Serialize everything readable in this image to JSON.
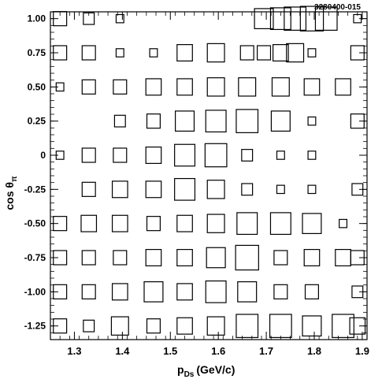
{
  "chart_data": {
    "type": "box-histogram-2d",
    "tag": "3280400-015",
    "xlabel": {
      "main": "p",
      "sub": "Ds",
      "unit": "(GeV/c)"
    },
    "ylabel": {
      "main": "cos θ",
      "sub": "π"
    },
    "xlim": [
      1.25,
      1.91
    ],
    "ylim": [
      -1.35,
      1.05
    ],
    "x_ticks": [
      {
        "v": 1.3,
        "label": "1.3"
      },
      {
        "v": 1.4,
        "label": "1.4"
      },
      {
        "v": 1.5,
        "label": "1.5"
      },
      {
        "v": 1.6,
        "label": "1.6"
      },
      {
        "v": 1.7,
        "label": "1.7"
      },
      {
        "v": 1.8,
        "label": "1.8"
      },
      {
        "v": 1.9,
        "label": "1.9"
      }
    ],
    "y_ticks": [
      {
        "v": 1.0,
        "label": "1.00"
      },
      {
        "v": 0.75,
        "label": "0.75"
      },
      {
        "v": 0.5,
        "label": "0.50"
      },
      {
        "v": 0.25,
        "label": "0.25"
      },
      {
        "v": 0.0,
        "label": "0"
      },
      {
        "v": -0.25,
        "label": "-0.25"
      },
      {
        "v": -0.5,
        "label": "-0.50"
      },
      {
        "v": -0.75,
        "label": "-0.75"
      },
      {
        "v": -1.0,
        "label": "-1.00"
      },
      {
        "v": -1.25,
        "label": "-1.25"
      }
    ],
    "bins_x": [
      1.27,
      1.3,
      1.33,
      1.365,
      1.395,
      1.43,
      1.465,
      1.495,
      1.53,
      1.56,
      1.595,
      1.625,
      1.66,
      1.695,
      1.73,
      1.76,
      1.795,
      1.825,
      1.86,
      1.89
    ],
    "bins_y": [
      1.0,
      0.75,
      0.5,
      0.25,
      0.0,
      -0.25,
      -0.5,
      -0.75,
      -1.0,
      -1.25
    ],
    "rows": [
      [
        3,
        0,
        2,
        0,
        1,
        0,
        0,
        0,
        0,
        0,
        0,
        0,
        0,
        6,
        7,
        8,
        9,
        8,
        0,
        1
      ],
      [
        3,
        0,
        3,
        0,
        1,
        0,
        1,
        0,
        4,
        0,
        5,
        0,
        3,
        3,
        4,
        5,
        1,
        0,
        0,
        3
      ],
      [
        1,
        0,
        3,
        0,
        3,
        0,
        4,
        0,
        4,
        0,
        5,
        0,
        5,
        0,
        5,
        0,
        4,
        0,
        4,
        0
      ],
      [
        0,
        0,
        0,
        0,
        2,
        0,
        3,
        0,
        6,
        0,
        7,
        0,
        8,
        0,
        6,
        0,
        1,
        0,
        0,
        3
      ],
      [
        1,
        0,
        3,
        0,
        3,
        0,
        4,
        0,
        7,
        0,
        8,
        0,
        2,
        0,
        1,
        0,
        1,
        0,
        0,
        0
      ],
      [
        0,
        0,
        3,
        0,
        4,
        0,
        4,
        0,
        7,
        0,
        5,
        0,
        2,
        0,
        1,
        0,
        1,
        0,
        0,
        2
      ],
      [
        3,
        0,
        4,
        0,
        4,
        0,
        3,
        0,
        4,
        0,
        5,
        0,
        7,
        0,
        7,
        0,
        6,
        0,
        1,
        0
      ],
      [
        3,
        0,
        3,
        0,
        3,
        0,
        4,
        0,
        4,
        0,
        6,
        0,
        9,
        0,
        3,
        0,
        4,
        0,
        4,
        3
      ],
      [
        3,
        0,
        3,
        0,
        4,
        0,
        6,
        0,
        4,
        0,
        7,
        0,
        6,
        0,
        3,
        0,
        3,
        0,
        0,
        2
      ],
      [
        3,
        0,
        2,
        0,
        5,
        0,
        3,
        0,
        4,
        0,
        5,
        0,
        8,
        0,
        8,
        0,
        6,
        0,
        8,
        4
      ]
    ]
  }
}
